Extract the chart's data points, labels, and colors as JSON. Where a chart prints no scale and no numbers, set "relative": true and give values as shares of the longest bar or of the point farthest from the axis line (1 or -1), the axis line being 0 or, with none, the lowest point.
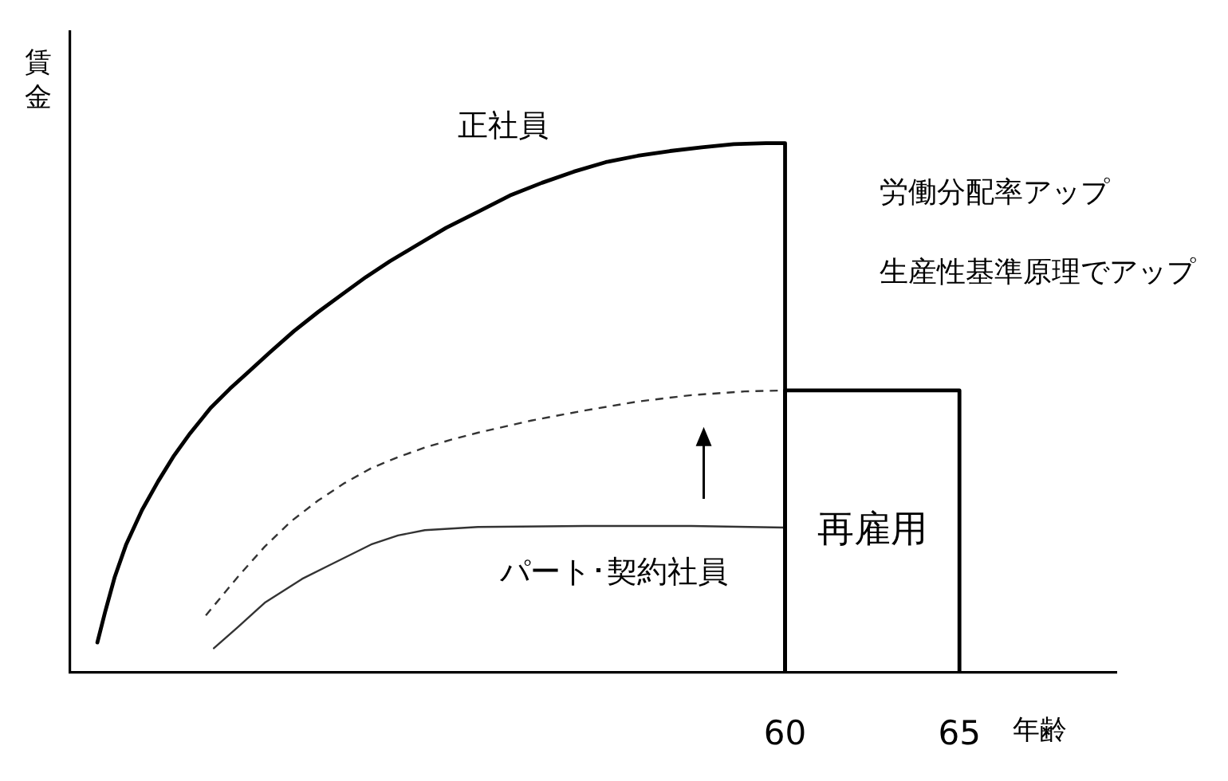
{
  "chart_data": {
    "type": "line",
    "xlabel": "年齢",
    "ylabel": "賃金",
    "relative": true,
    "xlim": [
      39.5,
      69.5
    ],
    "xticks": [
      60,
      65
    ],
    "marker": "none",
    "series": [
      {
        "name": "正社員",
        "color": "#000000",
        "x": [
          40.28,
          40.5,
          40.78,
          41.1,
          41.56,
          42.02,
          42.48,
          42.94,
          43.53,
          44.08,
          44.63,
          45.23,
          45.92,
          46.61,
          47.29,
          47.98,
          48.67,
          49.36,
          50.28,
          51.19,
          52.11,
          53.03,
          53.94,
          54.86,
          55.78,
          56.7,
          57.61,
          58.53,
          59.45,
          60,
          60
        ],
        "values": [
          0.057,
          0.114,
          0.181,
          0.241,
          0.307,
          0.361,
          0.41,
          0.452,
          0.5,
          0.536,
          0.569,
          0.605,
          0.645,
          0.681,
          0.714,
          0.747,
          0.777,
          0.804,
          0.84,
          0.87,
          0.901,
          0.925,
          0.946,
          0.964,
          0.976,
          0.985,
          0.992,
          0.998,
          1,
          1,
          0
        ]
      },
      {
        "color": "#333333",
        "line_style": "dashed",
        "x": [
          43.39,
          44.31,
          45.08,
          45.84,
          46.61,
          47.37,
          48.13,
          48.9,
          49.67,
          50.43,
          51.19,
          52.72,
          54.25,
          55.78,
          57.31,
          58.84,
          60
        ],
        "values": [
          0.108,
          0.181,
          0.238,
          0.286,
          0.325,
          0.358,
          0.386,
          0.407,
          0.425,
          0.44,
          0.453,
          0.476,
          0.495,
          0.512,
          0.524,
          0.531,
          0.533
        ]
      },
      {
        "name": "パート･契約社員",
        "color": "#333333",
        "x": [
          43.62,
          44.31,
          45.08,
          46.15,
          46.91,
          48.13,
          48.9,
          49.67,
          51.19,
          54.25,
          57.31,
          60
        ],
        "values": [
          0.046,
          0.086,
          0.132,
          0.177,
          0.202,
          0.242,
          0.259,
          0.269,
          0.275,
          0.277,
          0.277,
          0.274
        ]
      },
      {
        "name": "再雇用",
        "color": "#000000",
        "x": [
          60,
          60,
          65,
          65
        ],
        "values": [
          0,
          0.533,
          0.533,
          0
        ]
      }
    ],
    "annotations": [
      "労働分配率アップ",
      "生産性基準原理でアップ"
    ]
  }
}
